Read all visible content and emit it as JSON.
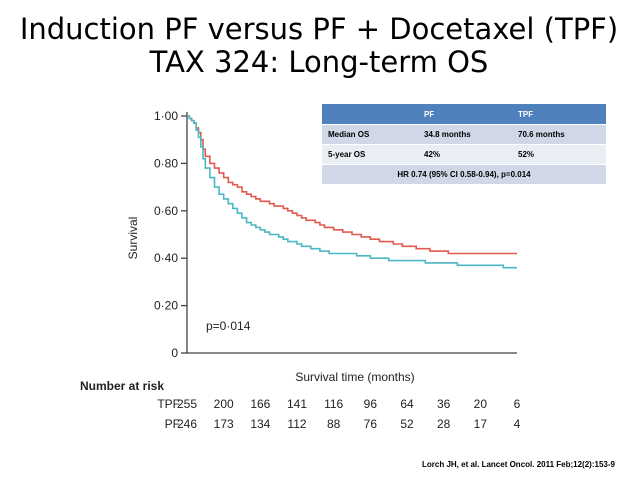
{
  "slide": {
    "title_line1": "Induction PF versus PF + Docetaxel (TPF)",
    "title_line2": "TAX 324: Long-term OS",
    "reference": "Lorch JH, et al. Lancet Oncol. 2011 Feb;12(2):153-9"
  },
  "table": {
    "headers": [
      "",
      "PF",
      "TPF"
    ],
    "rows": [
      [
        "Median OS",
        "34.8 months",
        "70.6 months"
      ],
      [
        "5-year OS",
        "42%",
        "52%"
      ]
    ],
    "footer": "HR 0.74 (95% CI 0.58-0.94), p=0.014",
    "colors": {
      "header": "#4f81bd",
      "row_dark": "#d0d8e8",
      "row_light": "#e9edf4"
    }
  },
  "chart_data": {
    "type": "line",
    "title": "",
    "xlabel": "Survival time (months)",
    "ylabel": "Survival",
    "ylim": [
      0,
      1
    ],
    "yticks": [
      "1·00",
      "0·80",
      "0·60",
      "0·40",
      "0·20",
      "0"
    ],
    "annotation": "p=0·014",
    "grid": false,
    "series": [
      {
        "name": "TPF",
        "color": "#e05a4e",
        "x": [
          0,
          1,
          2,
          3,
          4,
          5,
          6,
          7,
          8,
          10,
          12,
          14,
          16,
          18,
          20,
          22,
          24,
          26,
          28,
          30,
          32,
          34,
          36,
          38,
          40,
          42,
          44,
          46,
          48,
          50,
          52,
          54,
          56,
          58,
          60,
          62,
          64,
          66,
          68,
          70,
          72,
          74,
          76,
          78,
          80,
          82,
          84,
          86,
          88,
          90,
          92,
          94,
          96,
          98,
          100,
          102,
          104,
          106,
          108,
          110,
          112,
          114,
          116,
          118,
          120,
          122,
          124,
          126,
          128,
          130,
          132,
          134,
          136,
          138,
          140,
          142,
          144
        ],
        "y": [
          1.0,
          0.99,
          0.98,
          0.97,
          0.95,
          0.93,
          0.9,
          0.86,
          0.83,
          0.8,
          0.78,
          0.76,
          0.74,
          0.72,
          0.71,
          0.7,
          0.68,
          0.67,
          0.66,
          0.65,
          0.64,
          0.64,
          0.63,
          0.62,
          0.62,
          0.61,
          0.6,
          0.59,
          0.58,
          0.57,
          0.56,
          0.56,
          0.55,
          0.54,
          0.53,
          0.53,
          0.52,
          0.52,
          0.51,
          0.51,
          0.5,
          0.5,
          0.49,
          0.49,
          0.48,
          0.48,
          0.47,
          0.47,
          0.47,
          0.46,
          0.46,
          0.45,
          0.45,
          0.45,
          0.44,
          0.44,
          0.44,
          0.43,
          0.43,
          0.43,
          0.43,
          0.42,
          0.42,
          0.42,
          0.42,
          0.42,
          0.42,
          0.42,
          0.42,
          0.42,
          0.42,
          0.42,
          0.42,
          0.42,
          0.42,
          0.42,
          0.42
        ]
      },
      {
        "name": "PF",
        "color": "#4bb8c4",
        "x": [
          0,
          1,
          2,
          3,
          4,
          5,
          6,
          7,
          8,
          10,
          12,
          14,
          16,
          18,
          20,
          22,
          24,
          26,
          28,
          30,
          32,
          34,
          36,
          38,
          40,
          42,
          44,
          46,
          48,
          50,
          52,
          54,
          56,
          58,
          60,
          62,
          64,
          66,
          68,
          70,
          72,
          74,
          76,
          78,
          80,
          82,
          84,
          86,
          88,
          90,
          92,
          94,
          96,
          98,
          100,
          102,
          104,
          106,
          108,
          110,
          112,
          114,
          116,
          118,
          120,
          122,
          124,
          126,
          128,
          130,
          132,
          134,
          136,
          138,
          140,
          142,
          144
        ],
        "y": [
          1.0,
          0.99,
          0.98,
          0.97,
          0.94,
          0.91,
          0.87,
          0.82,
          0.78,
          0.74,
          0.7,
          0.67,
          0.65,
          0.63,
          0.61,
          0.59,
          0.57,
          0.55,
          0.54,
          0.53,
          0.52,
          0.51,
          0.5,
          0.5,
          0.49,
          0.48,
          0.47,
          0.47,
          0.46,
          0.45,
          0.45,
          0.44,
          0.44,
          0.43,
          0.43,
          0.42,
          0.42,
          0.42,
          0.42,
          0.42,
          0.42,
          0.41,
          0.41,
          0.41,
          0.4,
          0.4,
          0.4,
          0.4,
          0.39,
          0.39,
          0.39,
          0.39,
          0.39,
          0.39,
          0.39,
          0.39,
          0.38,
          0.38,
          0.38,
          0.38,
          0.38,
          0.38,
          0.38,
          0.37,
          0.37,
          0.37,
          0.37,
          0.37,
          0.37,
          0.37,
          0.37,
          0.37,
          0.37,
          0.36,
          0.36,
          0.36,
          0.36
        ]
      }
    ],
    "risk_table": {
      "label": "Number at risk",
      "rows": [
        {
          "name": "TPF",
          "values": [
            "255",
            "200",
            "166",
            "141",
            "116",
            "96",
            "64",
            "36",
            "20",
            "6"
          ]
        },
        {
          "name": "PF",
          "values": [
            "246",
            "173",
            "134",
            "112",
            "88",
            "76",
            "52",
            "28",
            "17",
            "4"
          ]
        }
      ]
    }
  }
}
